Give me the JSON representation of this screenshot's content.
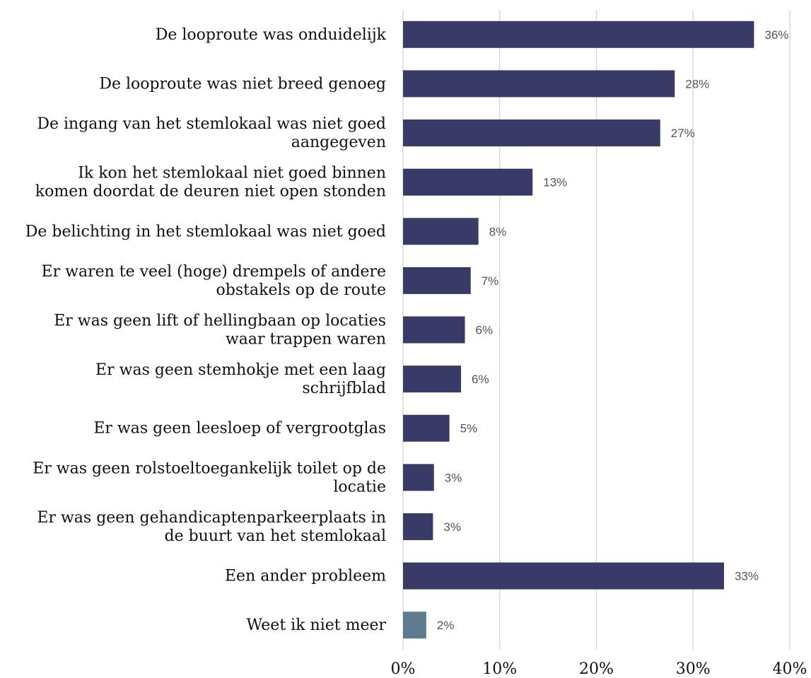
{
  "chart_data": {
    "type": "bar",
    "orientation": "horizontal",
    "categories": [
      [
        "De looproute was onduidelijk"
      ],
      [
        "De looproute was niet breed genoeg"
      ],
      [
        "De ingang van het stemlokaal was niet goed",
        "aangegeven"
      ],
      [
        "Ik kon het stemlokaal niet goed binnen",
        "komen doordat de deuren niet open stonden"
      ],
      [
        "De belichting in het stemlokaal was niet goed"
      ],
      [
        "Er waren te veel (hoge) drempels of andere",
        "obstakels op de route"
      ],
      [
        "Er was geen lift of hellingbaan op locaties",
        "waar trappen waren"
      ],
      [
        "Er was geen stemhokje met een laag",
        "schrijfblad"
      ],
      [
        "Er was geen leesloep of vergrootglas"
      ],
      [
        "Er was geen rolstoeltoegankelijk toilet op de",
        "locatie"
      ],
      [
        "Er was geen gehandicaptenparkeerplaats in",
        "de buurt van het stemlokaal"
      ],
      [
        "Een ander probleem"
      ],
      [
        "Weet ik niet meer"
      ]
    ],
    "values": [
      36.3,
      28.1,
      26.6,
      13.4,
      7.8,
      7.0,
      6.4,
      6.0,
      4.8,
      3.2,
      3.1,
      33.2,
      2.4
    ],
    "data_labels": [
      "36%",
      "28%",
      "27%",
      "13%",
      "8%",
      "7%",
      "6%",
      "6%",
      "5%",
      "3%",
      "3%",
      "33%",
      "2%"
    ],
    "bar_colors": [
      "#383b66",
      "#383b66",
      "#383b66",
      "#383b66",
      "#383b66",
      "#383b66",
      "#383b66",
      "#383b66",
      "#383b66",
      "#383b66",
      "#383b66",
      "#383b66",
      "#5e7b8f"
    ],
    "xlim": [
      0,
      40
    ],
    "xticks": [
      0,
      10,
      20,
      30,
      40
    ],
    "xtick_labels": [
      "0%",
      "10%",
      "20%",
      "30%",
      "40%"
    ],
    "grid": "vertical",
    "legend": "none"
  }
}
